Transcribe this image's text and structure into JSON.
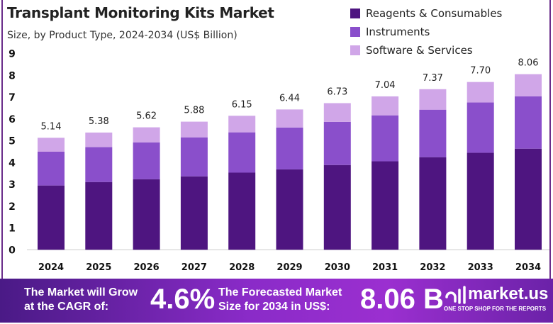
{
  "chart_data": {
    "type": "bar",
    "stacked": true,
    "title": "Transplant Monitoring Kits Market",
    "subtitle": "Size, by Product Type, 2024-2034 (US$ Billion)",
    "categories": [
      "2024",
      "2025",
      "2026",
      "2027",
      "2028",
      "2029",
      "2030",
      "2031",
      "2032",
      "2033",
      "2034"
    ],
    "series": [
      {
        "name": "Reagents & Consumables",
        "color": "#4e1580",
        "values": [
          2.95,
          3.11,
          3.24,
          3.37,
          3.54,
          3.69,
          3.89,
          4.06,
          4.25,
          4.45,
          4.64
        ]
      },
      {
        "name": "Instruments",
        "color": "#8a4fcb",
        "values": [
          1.55,
          1.6,
          1.69,
          1.79,
          1.85,
          1.92,
          1.98,
          2.11,
          2.18,
          2.31,
          2.4
        ]
      },
      {
        "name": "Software & Services",
        "color": "#d0a6e8",
        "values": [
          0.64,
          0.67,
          0.69,
          0.72,
          0.76,
          0.83,
          0.86,
          0.87,
          0.94,
          0.94,
          1.02
        ]
      }
    ],
    "totals": [
      "5.14",
      "5.38",
      "5.62",
      "5.88",
      "6.15",
      "6.44",
      "6.73",
      "7.04",
      "7.37",
      "7.70",
      "8.06"
    ],
    "ylim": [
      0,
      9
    ],
    "yticks": [
      "0",
      "1",
      "2",
      "3",
      "4",
      "5",
      "6",
      "7",
      "8",
      "9"
    ],
    "grid": false,
    "legend_position": "top-right"
  },
  "banner": {
    "cagr_label_1": "The Market will Grow",
    "cagr_label_2": "at the CAGR of:",
    "cagr_value": "4.6%",
    "forecast_label_1": "The Forecasted Market",
    "forecast_label_2": "Size for 2034 in US$:",
    "forecast_value": "8.06 B",
    "logo_text": "market.us",
    "logo_tagline": "ONE STOP SHOP FOR THE REPORTS"
  }
}
